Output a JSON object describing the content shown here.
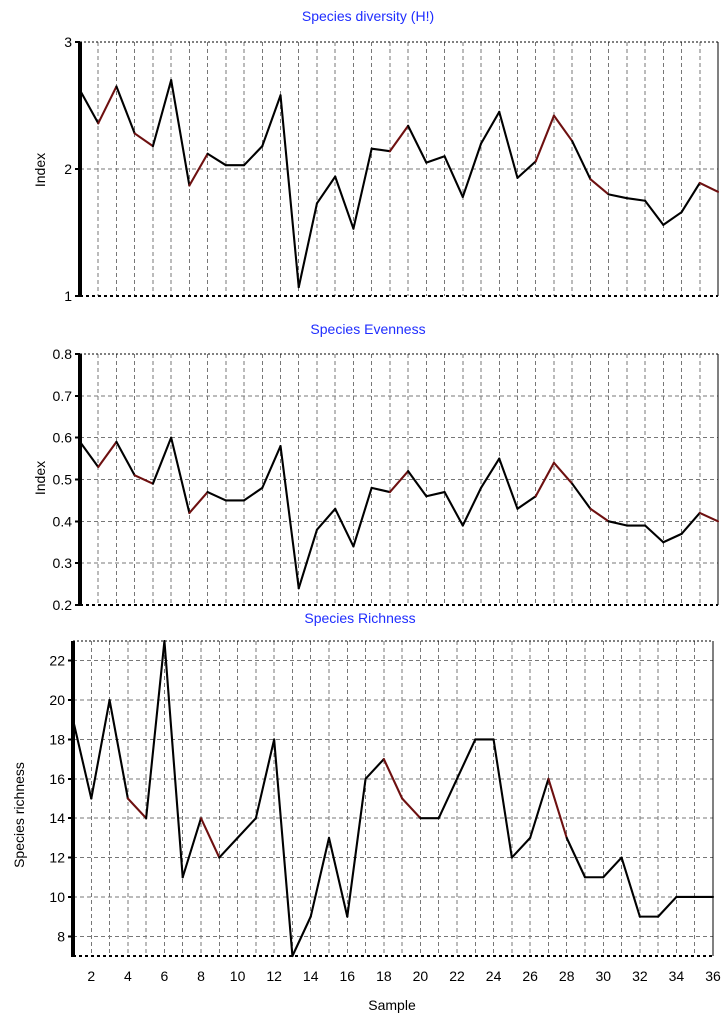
{
  "colors": {
    "title": "#1f2dff",
    "line_primary": "#000000",
    "line_secondary": "#6e1010",
    "grid": "#777777",
    "axis": "#000000",
    "background": "#ffffff"
  },
  "chart_data": [
    {
      "type": "line",
      "title": "Species diversity (H!)",
      "xlabel": "",
      "ylabel": "Index",
      "x": [
        1,
        2,
        3,
        4,
        5,
        6,
        7,
        8,
        9,
        10,
        11,
        12,
        13,
        14,
        15,
        16,
        17,
        18,
        19,
        20,
        21,
        22,
        23,
        24,
        25,
        26,
        27,
        28,
        29,
        30,
        31,
        32,
        33,
        34,
        35,
        36
      ],
      "values": [
        2.62,
        2.36,
        2.65,
        2.28,
        2.18,
        2.7,
        1.87,
        2.12,
        2.03,
        2.03,
        2.18,
        2.58,
        1.07,
        1.73,
        1.94,
        1.53,
        2.16,
        2.14,
        2.34,
        2.05,
        2.1,
        1.78,
        2.2,
        2.45,
        1.93,
        2.06,
        2.42,
        2.22,
        1.92,
        1.8,
        1.77,
        1.75,
        1.56,
        1.66,
        1.89,
        1.82
      ],
      "segment_colors": [
        "#000000",
        "#6e1010",
        "#000000",
        "#6e1010",
        "#000000",
        "#000000",
        "#6e1010",
        "#000000",
        "#000000",
        "#000000",
        "#000000",
        "#000000",
        "#000000",
        "#000000",
        "#000000",
        "#000000",
        "#000000",
        "#6e1010",
        "#000000",
        "#000000",
        "#000000",
        "#000000",
        "#000000",
        "#000000",
        "#000000",
        "#6e1010",
        "#6e1010",
        "#000000",
        "#6e1010",
        "#000000",
        "#000000",
        "#000000",
        "#000000",
        "#000000",
        "#6e1010"
      ],
      "x_range": [
        1,
        36
      ],
      "ylim": [
        1,
        3
      ],
      "ytick_values": [
        1,
        2,
        3
      ],
      "ytick_labels": [
        "1",
        "2",
        "3"
      ],
      "xtick_values": [],
      "xtick_labels": [],
      "grid": true,
      "legend": "none"
    },
    {
      "type": "line",
      "title": "Species Evenness",
      "xlabel": "",
      "ylabel": "Index",
      "x": [
        1,
        2,
        3,
        4,
        5,
        6,
        7,
        8,
        9,
        10,
        11,
        12,
        13,
        14,
        15,
        16,
        17,
        18,
        19,
        20,
        21,
        22,
        23,
        24,
        25,
        26,
        27,
        28,
        29,
        30,
        31,
        32,
        33,
        34,
        35,
        36
      ],
      "values": [
        0.59,
        0.53,
        0.59,
        0.51,
        0.49,
        0.6,
        0.42,
        0.47,
        0.45,
        0.45,
        0.48,
        0.58,
        0.24,
        0.38,
        0.43,
        0.34,
        0.48,
        0.47,
        0.52,
        0.46,
        0.47,
        0.39,
        0.48,
        0.55,
        0.43,
        0.46,
        0.54,
        0.49,
        0.43,
        0.4,
        0.39,
        0.39,
        0.35,
        0.37,
        0.42,
        0.4
      ],
      "segment_colors": [
        "#000000",
        "#6e1010",
        "#000000",
        "#6e1010",
        "#000000",
        "#000000",
        "#6e1010",
        "#000000",
        "#000000",
        "#000000",
        "#000000",
        "#000000",
        "#000000",
        "#000000",
        "#000000",
        "#000000",
        "#000000",
        "#6e1010",
        "#000000",
        "#000000",
        "#000000",
        "#000000",
        "#000000",
        "#000000",
        "#000000",
        "#6e1010",
        "#6e1010",
        "#000000",
        "#6e1010",
        "#000000",
        "#000000",
        "#000000",
        "#000000",
        "#000000",
        "#6e1010"
      ],
      "x_range": [
        1,
        36
      ],
      "ylim": [
        0.2,
        0.8
      ],
      "ytick_values": [
        0.2,
        0.3,
        0.4,
        0.5,
        0.6,
        0.7,
        0.8
      ],
      "ytick_labels": [
        "0.2",
        "0.3",
        "0.4",
        "0.5",
        "0.6",
        "0.7",
        "0.8"
      ],
      "xtick_values": [],
      "xtick_labels": [],
      "grid": true,
      "legend": "none"
    },
    {
      "type": "line",
      "title": "Species Richness",
      "xlabel": "Sample",
      "ylabel": "Species richness",
      "x": [
        1,
        2,
        3,
        4,
        5,
        6,
        7,
        8,
        9,
        10,
        11,
        12,
        13,
        14,
        15,
        16,
        17,
        18,
        19,
        20,
        21,
        22,
        23,
        24,
        25,
        26,
        27,
        28,
        29,
        30,
        31,
        32,
        33,
        34,
        35,
        36
      ],
      "values": [
        19,
        15,
        20,
        15,
        14,
        23,
        11,
        14,
        12,
        13,
        14,
        18,
        7,
        9,
        13,
        9,
        16,
        17,
        15,
        14,
        14,
        16,
        18,
        18,
        12,
        13,
        16,
        13,
        11,
        11,
        12,
        9,
        9,
        10,
        10,
        10
      ],
      "segment_colors": [
        "#000000",
        "#000000",
        "#000000",
        "#6e1010",
        "#000000",
        "#000000",
        "#000000",
        "#6e1010",
        "#000000",
        "#000000",
        "#000000",
        "#000000",
        "#000000",
        "#000000",
        "#000000",
        "#000000",
        "#000000",
        "#6e1010",
        "#6e1010",
        "#000000",
        "#000000",
        "#000000",
        "#000000",
        "#000000",
        "#000000",
        "#000000",
        "#6e1010",
        "#000000",
        "#000000",
        "#000000",
        "#000000",
        "#000000",
        "#000000",
        "#000000",
        "#000000"
      ],
      "x_range": [
        1,
        36
      ],
      "ylim": [
        7,
        23
      ],
      "ytick_values": [
        8,
        10,
        12,
        14,
        16,
        18,
        20,
        22
      ],
      "ytick_labels": [
        "8",
        "10",
        "12",
        "14",
        "16",
        "18",
        "20",
        "22"
      ],
      "xtick_values": [
        2,
        4,
        6,
        8,
        10,
        12,
        14,
        16,
        18,
        20,
        22,
        24,
        26,
        28,
        30,
        32,
        34,
        36
      ],
      "xtick_labels": [
        "2",
        "4",
        "6",
        "8",
        "10",
        "12",
        "14",
        "16",
        "18",
        "20",
        "22",
        "24",
        "26",
        "28",
        "30",
        "32",
        "34",
        "36"
      ],
      "grid": true,
      "legend": "none"
    }
  ]
}
